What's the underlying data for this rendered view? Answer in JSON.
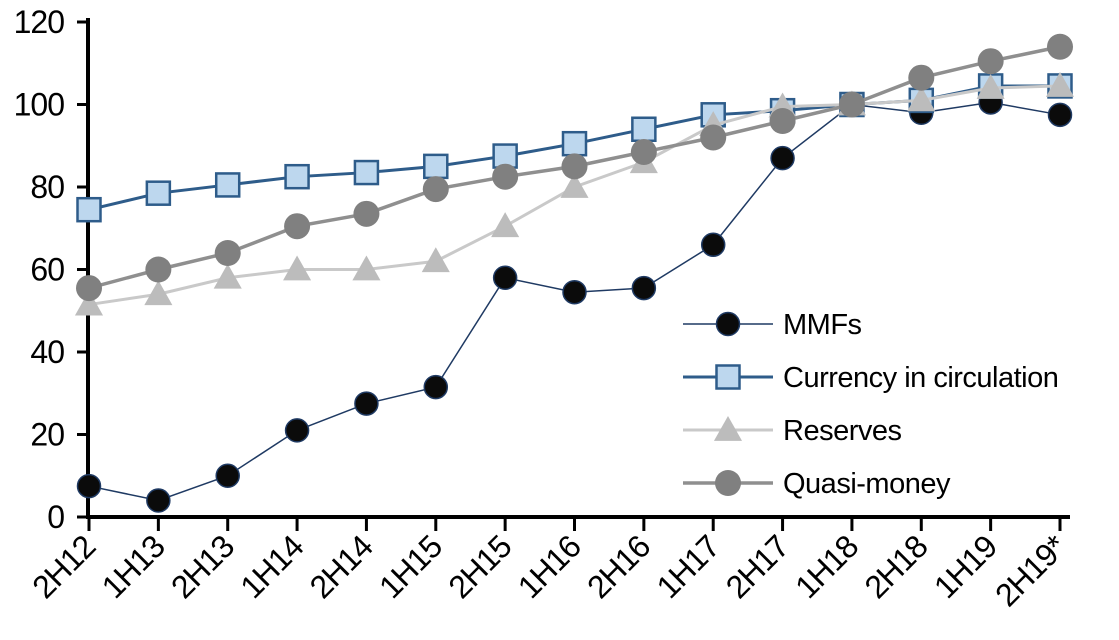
{
  "chart_data": {
    "type": "line",
    "title": "",
    "xlabel": "",
    "ylabel": "",
    "ylim": [
      0,
      120
    ],
    "ytick_step": 20,
    "y_ticks": [
      0,
      20,
      40,
      60,
      80,
      100,
      120
    ],
    "grid": false,
    "legend_position": "center-right",
    "axis_color": "#000000",
    "text_color": "#000000",
    "categories": [
      "2H12",
      "1H13",
      "2H13",
      "1H14",
      "2H14",
      "1H15",
      "2H15",
      "1H16",
      "2H16",
      "1H17",
      "2H17",
      "1H18",
      "2H18",
      "1H19",
      "2H19*"
    ],
    "series": [
      {
        "name": "MMFs",
        "marker": "circle",
        "marker_size": 23,
        "marker_fill": "#0b0b0b",
        "marker_stroke": "#1f3a63",
        "line_color": "#1f3a63",
        "line_width": 1.5,
        "values": [
          7.5,
          4,
          10,
          21,
          27.5,
          31.5,
          58,
          54.5,
          55.5,
          66,
          87,
          100,
          98,
          100.5,
          97.5
        ]
      },
      {
        "name": "Currency in circulation",
        "marker": "square",
        "marker_size": 23,
        "marker_fill": "#bdd7ee",
        "marker_stroke": "#2e5c8a",
        "line_color": "#2e5c8a",
        "line_width": 3,
        "values": [
          74.5,
          78.5,
          80.5,
          82.5,
          83.5,
          85,
          87.5,
          90.5,
          94,
          97.5,
          98.5,
          100,
          101,
          104.5,
          104.5
        ]
      },
      {
        "name": "Reserves",
        "marker": "triangle",
        "marker_size": 26,
        "marker_fill": "#bcbcbc",
        "marker_stroke": "none",
        "line_color": "#c9c9c9",
        "line_width": 3,
        "values": [
          51.5,
          54,
          58,
          60,
          60,
          62,
          70.5,
          80,
          86,
          95,
          99.5,
          100,
          101,
          104,
          104.5
        ]
      },
      {
        "name": "Quasi-money",
        "marker": "circle",
        "marker_size": 26,
        "marker_fill": "#808080",
        "marker_stroke": "none",
        "line_color": "#8f8f8f",
        "line_width": 3.5,
        "values": [
          55.5,
          60,
          64,
          70.5,
          73.5,
          79.5,
          82.5,
          85,
          88.5,
          92,
          96,
          100,
          106.5,
          110.5,
          114
        ]
      }
    ]
  }
}
